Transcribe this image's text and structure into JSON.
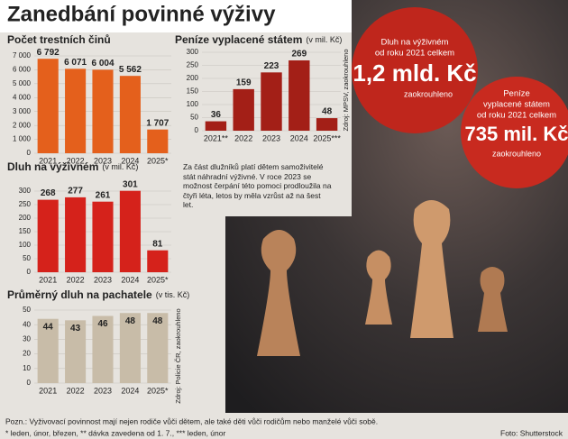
{
  "header": {
    "title": "Zanedbání povinné výživy"
  },
  "chart_data": [
    {
      "type": "bar",
      "title": "Počet trestních činů",
      "categories": [
        "2021",
        "2022",
        "2023",
        "2024",
        "2025*"
      ],
      "values": [
        6792,
        6071,
        6004,
        5562,
        1707
      ],
      "value_labels": [
        "6 792",
        "6 071",
        "6 004",
        "5 562",
        "1 707"
      ],
      "color": "#e4601c",
      "ylim": [
        0,
        7000
      ],
      "yticks": [
        0,
        {
          "value": 1000,
          "label": "1 000"
        },
        {
          "value": 2000,
          "label": "2 000"
        },
        {
          "value": 3000,
          "label": "3 000"
        },
        {
          "value": 4000,
          "label": "4 000"
        },
        {
          "value": 5000,
          "label": "5 000"
        },
        {
          "value": 6000,
          "label": "6 000"
        },
        {
          "value": 7000,
          "label": "7 000"
        }
      ],
      "grid": true
    },
    {
      "type": "bar",
      "title": "Peníze vyplacené státem",
      "subtitle": "(v mil. Kč)",
      "categories": [
        "2021**",
        "2022",
        "2023",
        "2024",
        "2025***"
      ],
      "values": [
        36,
        159,
        223,
        269,
        48
      ],
      "color": "#a31f17",
      "ylim": [
        0,
        300
      ],
      "yticks": [
        0,
        50,
        100,
        150,
        200,
        250,
        300
      ],
      "grid": true,
      "source": "Zdroj: MPSV, zaokrouhleno"
    },
    {
      "type": "bar",
      "title": "Dluh na výživném",
      "subtitle": "(v mil. Kč)",
      "categories": [
        "2021",
        "2022",
        "2023",
        "2024",
        "2025*"
      ],
      "values": [
        268,
        277,
        261,
        301,
        81
      ],
      "color": "#d5221b",
      "ylim": [
        0,
        300
      ],
      "yticks": [
        0,
        50,
        100,
        150,
        200,
        250,
        300
      ],
      "grid": true
    },
    {
      "type": "bar",
      "title": "Průměrný dluh na pachatele",
      "subtitle": "(v tis. Kč)",
      "categories": [
        "2021",
        "2022",
        "2023",
        "2024",
        "2025*"
      ],
      "values": [
        44,
        43,
        46,
        48,
        48
      ],
      "color": "#c8bca8",
      "ylim": [
        0,
        50
      ],
      "yticks": [
        0,
        10,
        20,
        30,
        40,
        50
      ],
      "grid": true,
      "source": "Zdroj: Policie ČR, zaokrouhleno"
    }
  ],
  "annotation": "Za část dlužníků platí dětem samoživitelé stát náhradní výživné. V roce 2023 se možnost čerpání této pomoci prodloužila na čtyři léta, letos by měla vzrůst až na šest let.",
  "callouts": [
    {
      "label": [
        "Dluh na výživném",
        "od roku 2021 celkem"
      ],
      "value": "1,2 mld. Kč",
      "note": "zaokrouhleno"
    },
    {
      "label": [
        "Peníze",
        "vyplacené státem",
        "od roku 2021 celkem"
      ],
      "value": "735 mil. Kč",
      "note": "zaokrouhleno"
    }
  ],
  "footer": {
    "note": "Pozn.: Vyživovací povinnost mají nejen rodiče vůči dětem, ale také děti vůči rodičům nebo manželé vůči sobě.",
    "footnotes": "* leden, únor, březen, ** dávka zavedena od 1. 7., *** leden, únor",
    "credit": "Foto: Shutterstock"
  }
}
